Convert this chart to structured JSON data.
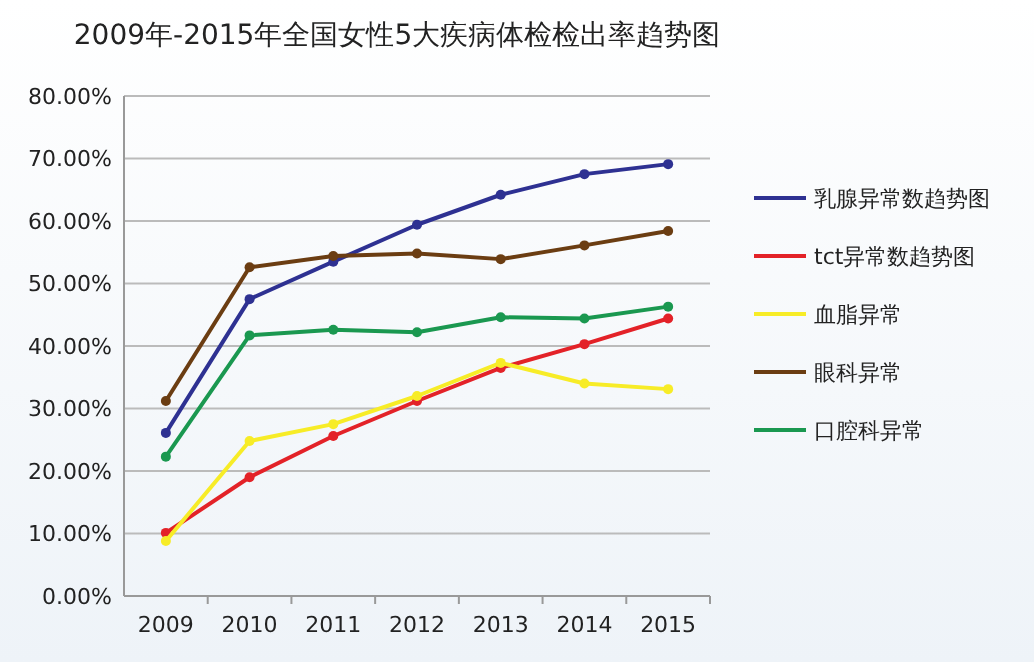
{
  "chart_data": {
    "type": "line",
    "title": "2009年-2015年全国女性5大疾病体检检出率趋势图",
    "categories": [
      "2009",
      "2010",
      "2011",
      "2012",
      "2013",
      "2014",
      "2015"
    ],
    "series": [
      {
        "name": "乳腺异常数趋势图",
        "color": "#2e3192",
        "values": [
          26.1,
          47.5,
          53.5,
          59.4,
          64.2,
          67.5,
          69.1
        ]
      },
      {
        "name": "tct异常数趋势图",
        "color": "#e32228",
        "values": [
          10.1,
          19.0,
          25.6,
          31.2,
          36.5,
          40.3,
          44.4
        ]
      },
      {
        "name": "血脂异常",
        "color": "#f7ec27",
        "values": [
          8.8,
          24.8,
          27.5,
          32.0,
          37.3,
          34.0,
          33.1
        ]
      },
      {
        "name": "眼科异常",
        "color": "#6b3d12",
        "values": [
          31.2,
          52.6,
          54.4,
          54.8,
          53.9,
          56.1,
          58.4
        ]
      },
      {
        "name": "口腔科异常",
        "color": "#1a9850",
        "values": [
          22.3,
          41.7,
          42.6,
          42.2,
          44.6,
          44.4,
          46.3
        ]
      }
    ],
    "ylim": [
      0,
      80
    ],
    "yticks": [
      {
        "value": 0,
        "label": "0.00%"
      },
      {
        "value": 10,
        "label": "10.00%"
      },
      {
        "value": 20,
        "label": "20.00%"
      },
      {
        "value": 30,
        "label": "30.00%"
      },
      {
        "value": 40,
        "label": "40.00%"
      },
      {
        "value": 50,
        "label": "50.00%"
      },
      {
        "value": 60,
        "label": "60.00%"
      },
      {
        "value": 70,
        "label": "70.00%"
      },
      {
        "value": 80,
        "label": "80.00%"
      }
    ],
    "grid": "y",
    "legend": "right",
    "marker": "circle",
    "line_style": "solid"
  }
}
